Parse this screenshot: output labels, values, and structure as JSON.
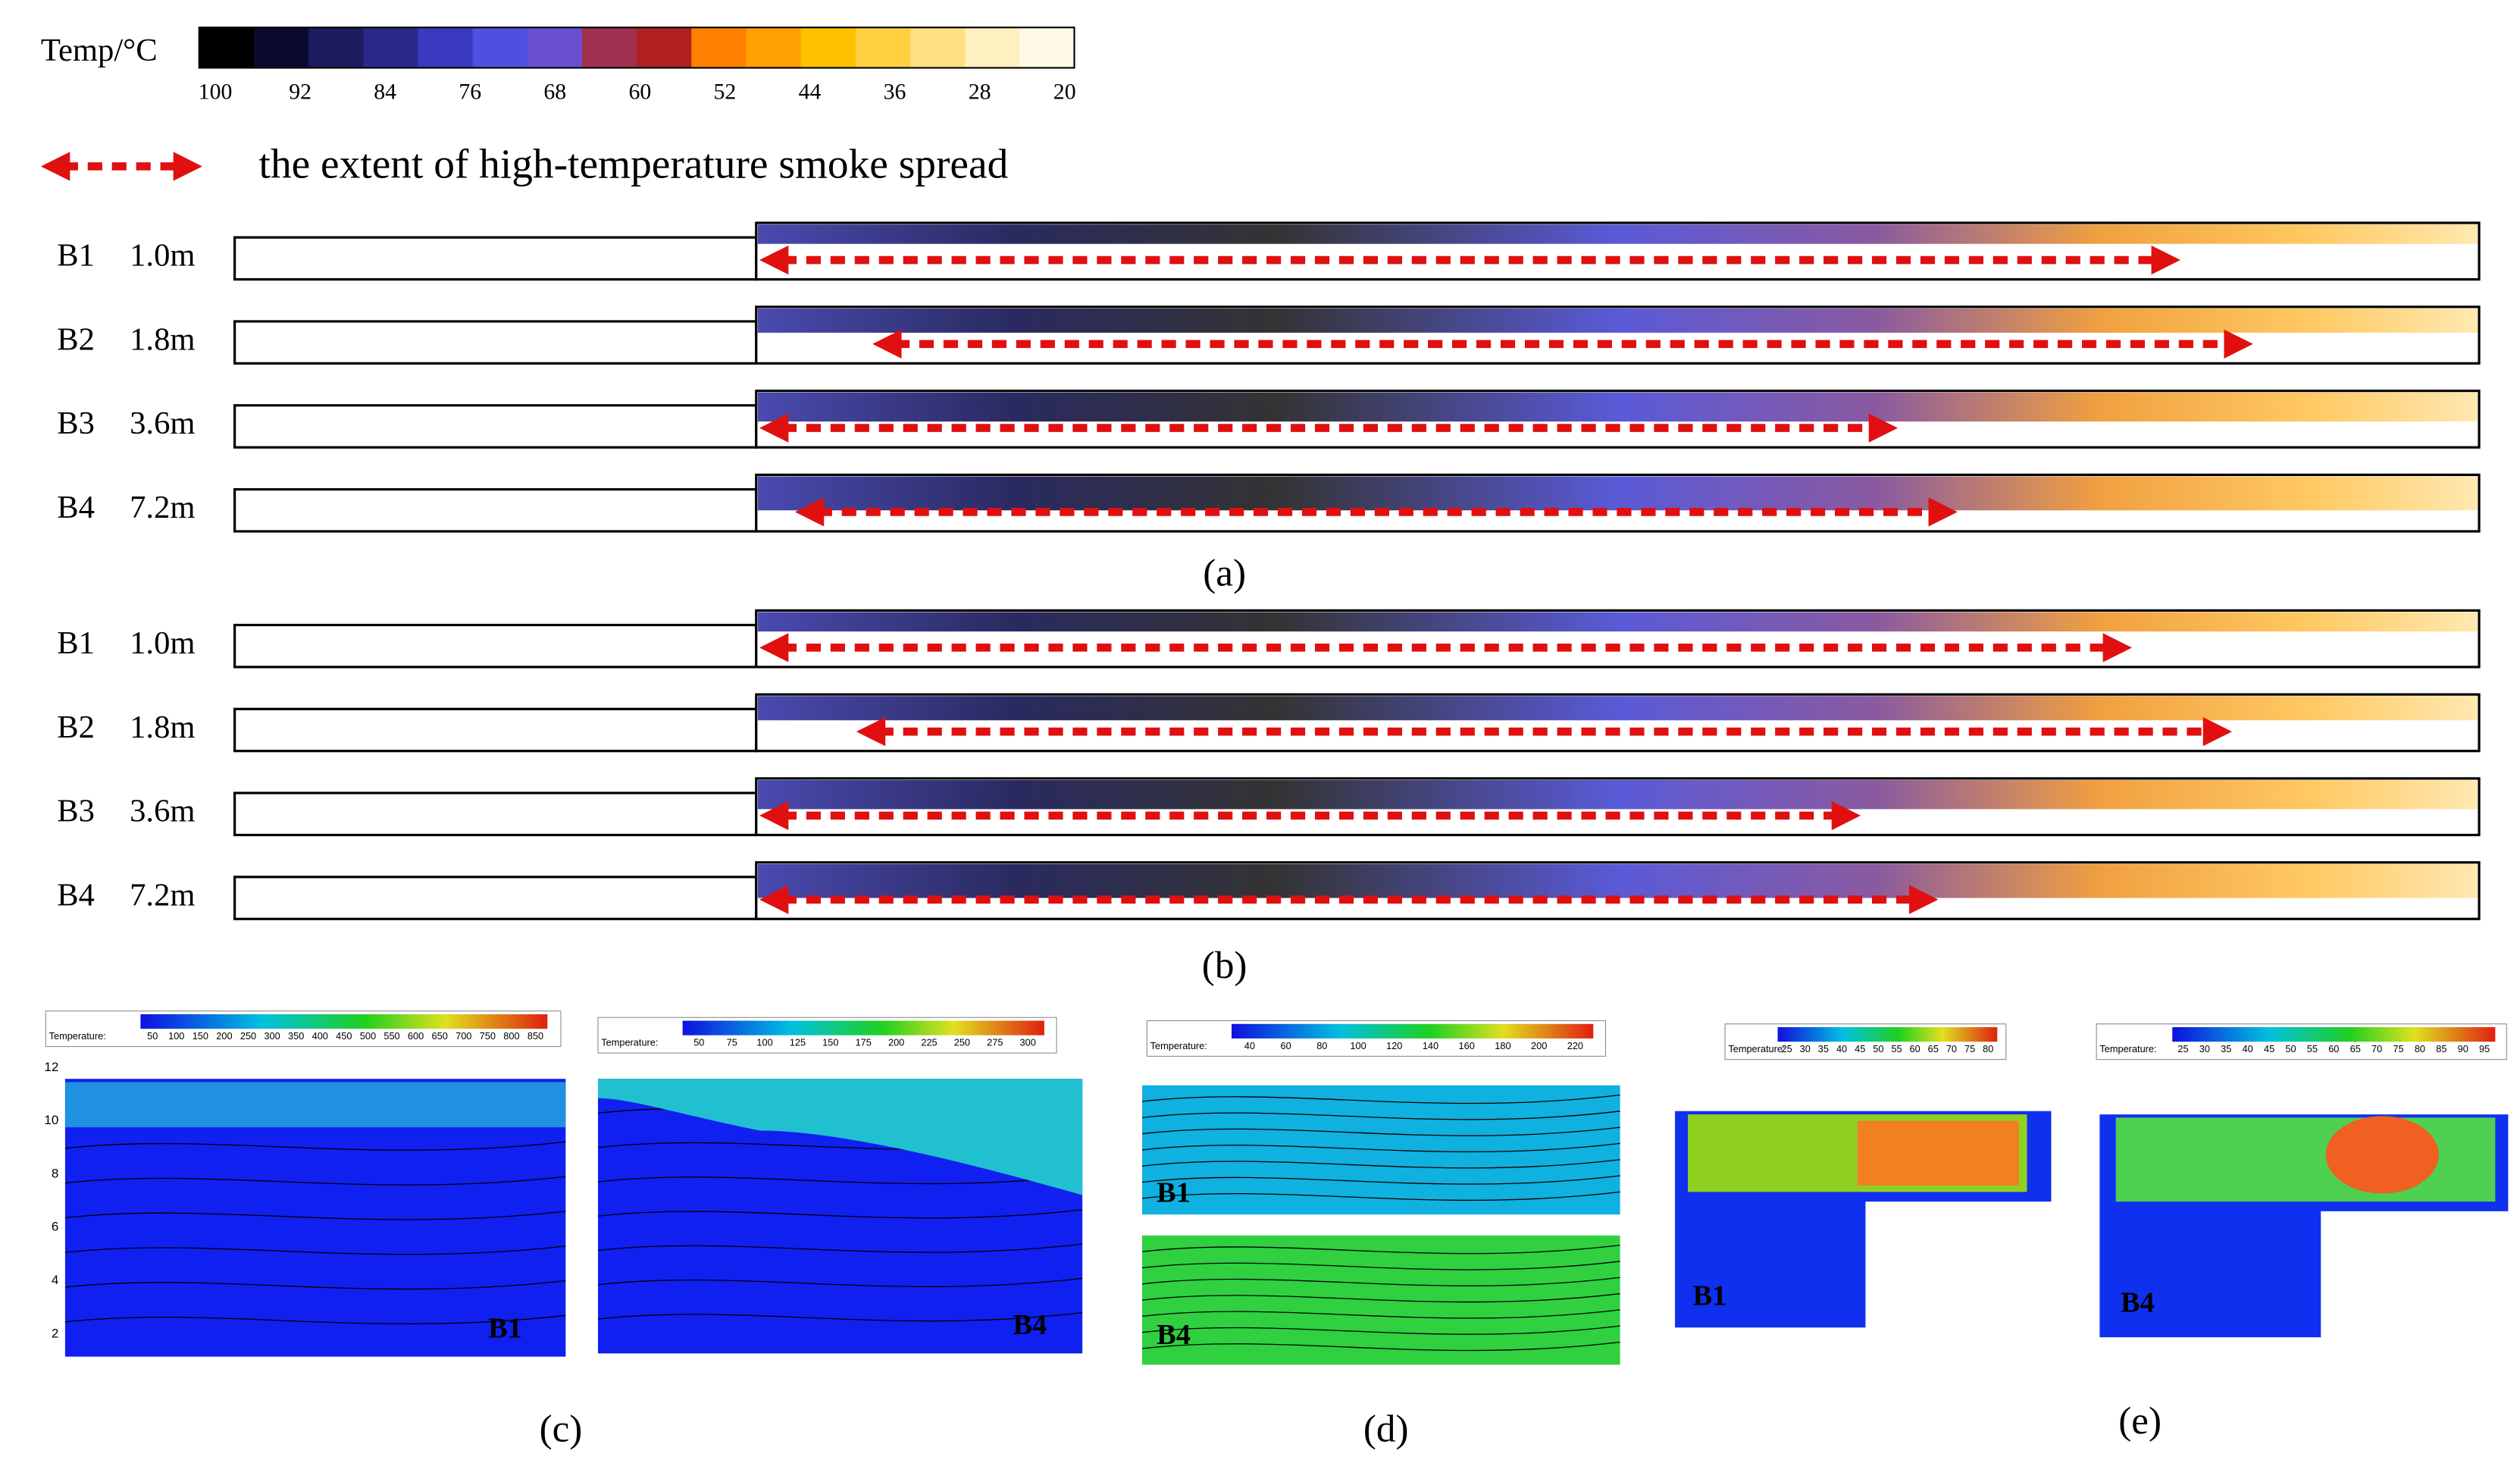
{
  "legend": {
    "title": "Temp/°C",
    "ticks": [
      100,
      92,
      84,
      76,
      68,
      60,
      52,
      44,
      36,
      28,
      20
    ],
    "arrow_label": "the extent of high-temperature smoke spread"
  },
  "panels": [
    {
      "label": "(a)",
      "rows": [
        {
          "name": "B1",
          "height": "1.0m"
        },
        {
          "name": "B2",
          "height": "1.8m"
        },
        {
          "name": "B3",
          "height": "3.6m"
        },
        {
          "name": "B4",
          "height": "7.2m"
        }
      ]
    },
    {
      "label": "(b)",
      "rows": [
        {
          "name": "B1",
          "height": "1.0m"
        },
        {
          "name": "B2",
          "height": "1.8m"
        },
        {
          "name": "B3",
          "height": "3.6m"
        },
        {
          "name": "B4",
          "height": "7.2m"
        }
      ]
    }
  ],
  "panel_c": {
    "label": "(c)",
    "axis_ticks": [
      2,
      4,
      6,
      8,
      10,
      12
    ],
    "plots": [
      {
        "case": "B1",
        "colorbar_title": "Temperature:",
        "ticks": [
          50,
          100,
          150,
          200,
          250,
          300,
          350,
          400,
          450,
          500,
          550,
          600,
          650,
          700,
          750,
          800,
          850
        ]
      },
      {
        "case": "B4",
        "colorbar_title": "Temperature:",
        "ticks": [
          50,
          75,
          100,
          125,
          150,
          175,
          200,
          225,
          250,
          275,
          300
        ]
      }
    ]
  },
  "panel_d": {
    "label": "(d)",
    "colorbar_title": "Temperature:",
    "ticks": [
      40,
      60,
      80,
      100,
      120,
      140,
      160,
      180,
      200,
      220
    ],
    "cases": [
      "B1",
      "B4"
    ]
  },
  "panel_e": {
    "label": "(e)",
    "plots": [
      {
        "case": "B1",
        "colorbar_title": "Temperature:",
        "ticks": [
          25,
          30,
          35,
          40,
          45,
          50,
          55,
          60,
          65,
          70,
          75,
          80
        ]
      },
      {
        "case": "B4",
        "colorbar_title": "Temperature:",
        "ticks": [
          25,
          30,
          35,
          40,
          45,
          50,
          55,
          60,
          65,
          70,
          75,
          80,
          85,
          90,
          95
        ]
      }
    ]
  }
}
